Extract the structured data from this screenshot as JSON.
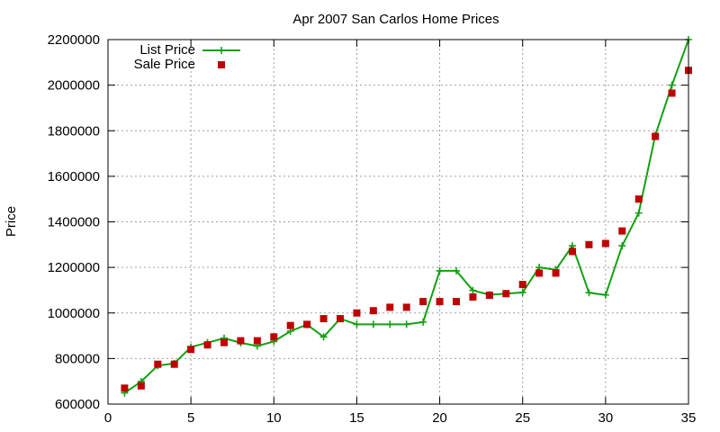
{
  "chart_data": {
    "type": "scatter",
    "title": "Apr 2007 San Carlos Home Prices",
    "xlabel": "",
    "ylabel": "Price",
    "xlim": [
      0,
      35
    ],
    "ylim": [
      600000,
      2200000
    ],
    "x_ticks": [
      0,
      5,
      10,
      15,
      20,
      25,
      30,
      35
    ],
    "y_ticks": [
      600000,
      800000,
      1000000,
      1200000,
      1400000,
      1600000,
      1800000,
      2000000,
      2200000
    ],
    "grid": true,
    "legend_position": "top-left",
    "series": [
      {
        "name": "List Price",
        "style": "line-plus",
        "color": "#13a013",
        "x": [
          1,
          2,
          3,
          4,
          5,
          6,
          7,
          8,
          9,
          10,
          11,
          12,
          13,
          14,
          15,
          16,
          17,
          18,
          19,
          20,
          21,
          22,
          23,
          24,
          25,
          26,
          27,
          28,
          29,
          30,
          31,
          32,
          33,
          34,
          35
        ],
        "y": [
          649000,
          699000,
          769000,
          779000,
          850000,
          870000,
          889000,
          869000,
          855000,
          875000,
          920000,
          949000,
          895000,
          975000,
          950000,
          950000,
          950000,
          950000,
          960000,
          1185000,
          1185000,
          1099000,
          1080000,
          1085000,
          1090000,
          1200000,
          1190000,
          1295000,
          1089000,
          1079000,
          1295000,
          1439000,
          1780000,
          2000000,
          2200000
        ]
      },
      {
        "name": "Sale Price",
        "style": "square",
        "color": "#c00000",
        "x": [
          1,
          2,
          3,
          4,
          5,
          6,
          7,
          8,
          9,
          10,
          11,
          12,
          13,
          14,
          15,
          16,
          17,
          18,
          19,
          20,
          21,
          22,
          23,
          24,
          25,
          26,
          27,
          28,
          29,
          30,
          31,
          32,
          33,
          34,
          35
        ],
        "y": [
          670000,
          680000,
          775000,
          775000,
          840000,
          860000,
          870000,
          878000,
          878000,
          895000,
          945000,
          950000,
          975000,
          975000,
          1000000,
          1010000,
          1025000,
          1025000,
          1050000,
          1050000,
          1050000,
          1070000,
          1078000,
          1085000,
          1125000,
          1175000,
          1175000,
          1270000,
          1300000,
          1305000,
          1360000,
          1500000,
          1775000,
          1965000,
          2065000
        ]
      }
    ]
  }
}
